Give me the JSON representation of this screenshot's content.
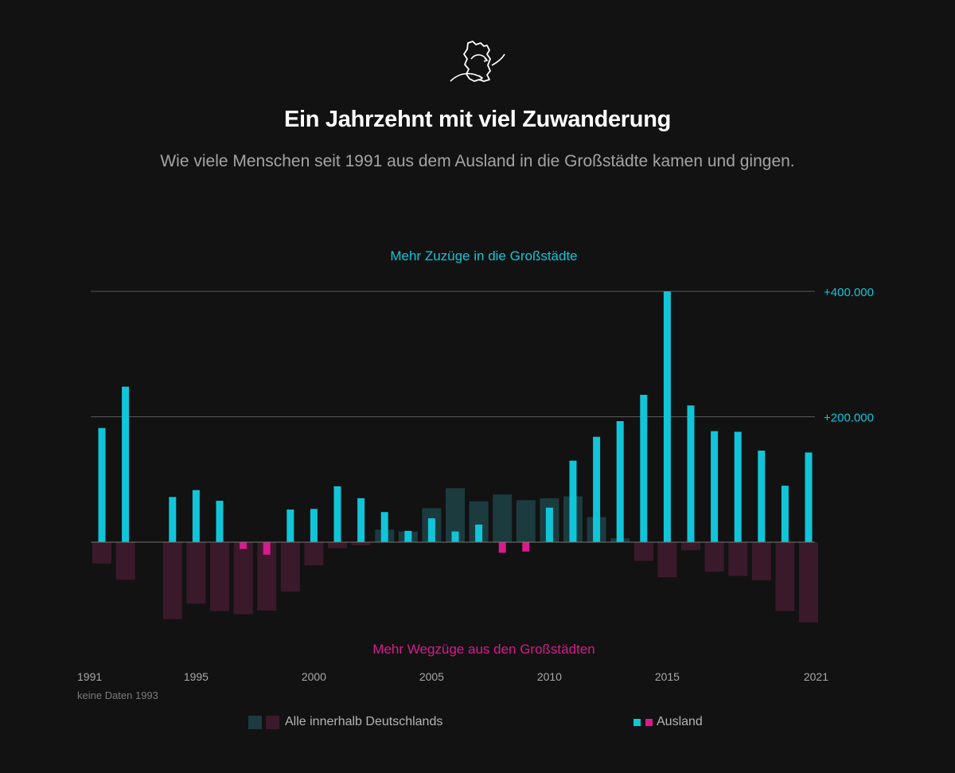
{
  "header": {
    "logo_icon": "germany-map-arrows-icon",
    "title": "Ein Jahrzehnt mit viel Zuwanderung",
    "subtitle": "Wie viele Menschen seit 1991 aus dem Ausland in die Großstädte kamen und gingen."
  },
  "colors": {
    "background": "#121212",
    "ausland_positive": "#11c5d9",
    "ausland_negative": "#d81b8c",
    "domestic_positive": "#1c3b3f",
    "domestic_negative": "#3a1a2a",
    "gridline": "#5a5a5a",
    "axis_text": "#a8a8a8"
  },
  "chart_data": {
    "type": "bar",
    "title": "Ein Jahrzehnt mit viel Zuwanderung",
    "ylabel_top": "Mehr Zuzüge in die Großstädte",
    "ylabel_bottom": "Mehr Wegzüge aus den Großstädten",
    "ylim": [
      -130000,
      400000
    ],
    "yticks": [
      {
        "value": 200000,
        "label": "+200.000"
      },
      {
        "value": 400000,
        "label": "+400.000"
      }
    ],
    "xlim": [
      1991,
      2021
    ],
    "xticks": [
      {
        "year": 1991,
        "label": "1991"
      },
      {
        "year": 1995,
        "label": "1995"
      },
      {
        "year": 2000,
        "label": "2000"
      },
      {
        "year": 2005,
        "label": "2005"
      },
      {
        "year": 2010,
        "label": "2010"
      },
      {
        "year": 2015,
        "label": "2015"
      },
      {
        "year": 2021,
        "label": "2021"
      }
    ],
    "note": "keine Daten 1993",
    "missing_years": [
      1993
    ],
    "years": [
      1991,
      1992,
      1993,
      1994,
      1995,
      1996,
      1997,
      1998,
      1999,
      2000,
      2001,
      2002,
      2003,
      2004,
      2005,
      2006,
      2007,
      2008,
      2009,
      2010,
      2011,
      2012,
      2013,
      2014,
      2015,
      2016,
      2017,
      2018,
      2019,
      2020,
      2021
    ],
    "series": [
      {
        "name": "Alle innerhalb Deutschlands",
        "values": [
          -34000,
          -60000,
          null,
          -123000,
          -98000,
          -110000,
          -115000,
          -109000,
          -79000,
          -37000,
          -10000,
          -5000,
          20000,
          17000,
          54000,
          86000,
          65000,
          76000,
          67000,
          70000,
          73000,
          40000,
          6000,
          -30000,
          -56000,
          -13000,
          -47000,
          -54000,
          -61000,
          -110000,
          -128000
        ]
      },
      {
        "name": "Ausland",
        "values": [
          182000,
          248000,
          null,
          72000,
          83000,
          66000,
          -11000,
          -20000,
          52000,
          53000,
          89000,
          70000,
          48000,
          18000,
          38000,
          17000,
          28000,
          -17000,
          -15000,
          55000,
          130000,
          168000,
          193000,
          235000,
          400000,
          218000,
          177000,
          176000,
          146000,
          90000,
          143000
        ]
      }
    ]
  },
  "legend": {
    "domestic_label": "Alle innerhalb Deutschlands",
    "ausland_label": "Ausland"
  }
}
